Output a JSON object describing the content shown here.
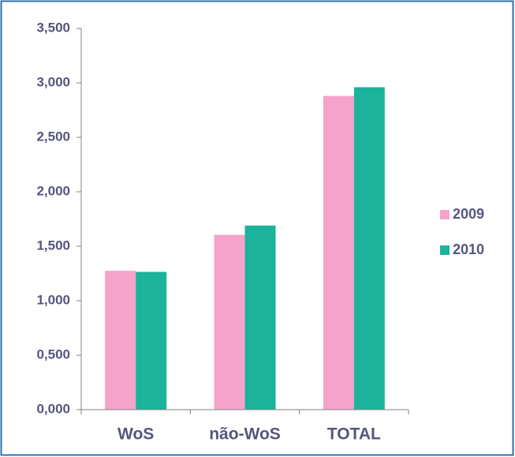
{
  "chart_data": {
    "type": "bar",
    "categories": [
      "WoS",
      "não-WoS",
      "TOTAL"
    ],
    "series": [
      {
        "name": "2009",
        "color": "#f5a3cb",
        "values": [
          1.275,
          1.605,
          2.88
        ]
      },
      {
        "name": "2010",
        "color": "#1bb39b",
        "values": [
          1.265,
          1.69,
          2.96
        ]
      }
    ],
    "ylim": [
      0,
      3.5
    ],
    "yticks": [
      {
        "value": 0,
        "label": "0,000"
      },
      {
        "value": 0.5,
        "label": "0,500"
      },
      {
        "value": 1,
        "label": "1,000"
      },
      {
        "value": 1.5,
        "label": "1,500"
      },
      {
        "value": 2,
        "label": "2,000"
      },
      {
        "value": 2.5,
        "label": "2,500"
      },
      {
        "value": 3,
        "label": "3,000"
      },
      {
        "value": 3.5,
        "label": "3,500"
      }
    ],
    "grid": false,
    "legend": "right"
  }
}
